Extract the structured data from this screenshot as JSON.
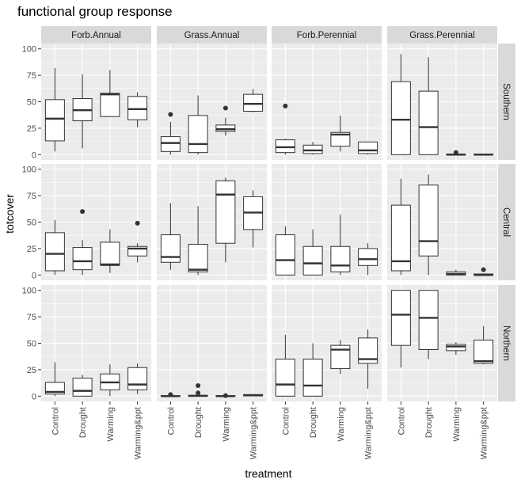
{
  "chart_data": {
    "type": "boxplot",
    "title": "functional group response",
    "xlabel": "treatment",
    "ylabel": "totcover",
    "ylim": [
      -5,
      105
    ],
    "yticks": [
      0,
      25,
      50,
      75,
      100
    ],
    "grid": true,
    "categories": [
      "Control",
      "Drought",
      "Warming",
      "Warming&ppt"
    ],
    "columns": [
      "Forb.Annual",
      "Grass.Annual",
      "Forb.Perennial",
      "Grass.Perennial"
    ],
    "rows": [
      "Southern",
      "Central",
      "Northern"
    ],
    "panels": [
      {
        "row": "Southern",
        "col": "Forb.Annual",
        "boxes": [
          {
            "q1": 13,
            "median": 34,
            "q3": 52,
            "lo": 3,
            "hi": 82,
            "out": []
          },
          {
            "q1": 32,
            "median": 42,
            "q3": 53,
            "lo": 6,
            "hi": 76,
            "out": []
          },
          {
            "q1": 36,
            "median": 57,
            "q3": 58,
            "lo": 36,
            "hi": 80,
            "out": []
          },
          {
            "q1": 33,
            "median": 43,
            "q3": 55,
            "lo": 26,
            "hi": 59,
            "out": []
          }
        ]
      },
      {
        "row": "Southern",
        "col": "Grass.Annual",
        "boxes": [
          {
            "q1": 3,
            "median": 11,
            "q3": 17,
            "lo": 0,
            "hi": 31,
            "out": [
              38
            ]
          },
          {
            "q1": 2,
            "median": 10,
            "q3": 37,
            "lo": 0,
            "hi": 56,
            "out": []
          },
          {
            "q1": 22,
            "median": 24,
            "q3": 28,
            "lo": 18,
            "hi": 35,
            "out": [
              44
            ]
          },
          {
            "q1": 41,
            "median": 48,
            "q3": 57,
            "lo": 40,
            "hi": 62,
            "out": []
          }
        ]
      },
      {
        "row": "Southern",
        "col": "Forb.Perennial",
        "boxes": [
          {
            "q1": 2,
            "median": 7,
            "q3": 14,
            "lo": 0,
            "hi": 15,
            "out": [
              46
            ]
          },
          {
            "q1": 1,
            "median": 4,
            "q3": 9,
            "lo": 0,
            "hi": 12,
            "out": []
          },
          {
            "q1": 8,
            "median": 19,
            "q3": 21,
            "lo": 3,
            "hi": 37,
            "out": []
          },
          {
            "q1": 1,
            "median": 4,
            "q3": 12,
            "lo": 0,
            "hi": 12,
            "out": []
          }
        ]
      },
      {
        "row": "Southern",
        "col": "Grass.Perennial",
        "boxes": [
          {
            "q1": 0,
            "median": 33,
            "q3": 69,
            "lo": 0,
            "hi": 95,
            "out": []
          },
          {
            "q1": 0,
            "median": 26,
            "q3": 60,
            "lo": 0,
            "hi": 92,
            "out": []
          },
          {
            "q1": 0,
            "median": 0,
            "q3": 0.5,
            "lo": 0,
            "hi": 1,
            "out": [
              2
            ]
          },
          {
            "q1": 0,
            "median": 0,
            "q3": 0.5,
            "lo": 0,
            "hi": 0.5,
            "out": []
          }
        ]
      },
      {
        "row": "Central",
        "col": "Forb.Annual",
        "boxes": [
          {
            "q1": 4,
            "median": 20,
            "q3": 40,
            "lo": 0,
            "hi": 52,
            "out": []
          },
          {
            "q1": 5,
            "median": 13,
            "q3": 26,
            "lo": 0,
            "hi": 33,
            "out": [
              60
            ]
          },
          {
            "q1": 9,
            "median": 10,
            "q3": 31,
            "lo": 2,
            "hi": 43,
            "out": []
          },
          {
            "q1": 18,
            "median": 25,
            "q3": 27,
            "lo": 12,
            "hi": 30,
            "out": [
              49
            ]
          }
        ]
      },
      {
        "row": "Central",
        "col": "Grass.Annual",
        "boxes": [
          {
            "q1": 12,
            "median": 17,
            "q3": 38,
            "lo": 5,
            "hi": 68,
            "out": []
          },
          {
            "q1": 3,
            "median": 5,
            "q3": 29,
            "lo": 0,
            "hi": 65,
            "out": []
          },
          {
            "q1": 30,
            "median": 76,
            "q3": 89,
            "lo": 12,
            "hi": 92,
            "out": []
          },
          {
            "q1": 43,
            "median": 59,
            "q3": 74,
            "lo": 26,
            "hi": 80,
            "out": []
          }
        ]
      },
      {
        "row": "Central",
        "col": "Forb.Perennial",
        "boxes": [
          {
            "q1": 0,
            "median": 14,
            "q3": 38,
            "lo": 0,
            "hi": 46,
            "out": []
          },
          {
            "q1": 0,
            "median": 11,
            "q3": 27,
            "lo": 0,
            "hi": 43,
            "out": []
          },
          {
            "q1": 3,
            "median": 9,
            "q3": 27,
            "lo": 0,
            "hi": 57,
            "out": []
          },
          {
            "q1": 9,
            "median": 15,
            "q3": 25,
            "lo": 0,
            "hi": 30,
            "out": []
          }
        ]
      },
      {
        "row": "Central",
        "col": "Grass.Perennial",
        "boxes": [
          {
            "q1": 4,
            "median": 13,
            "q3": 66,
            "lo": 0,
            "hi": 91,
            "out": []
          },
          {
            "q1": 18,
            "median": 32,
            "q3": 85,
            "lo": 0,
            "hi": 95,
            "out": []
          },
          {
            "q1": 0,
            "median": 1,
            "q3": 3,
            "lo": 0,
            "hi": 5,
            "out": []
          },
          {
            "q1": 0,
            "median": 0,
            "q3": 1,
            "lo": 0,
            "hi": 1,
            "out": [
              5
            ]
          }
        ]
      },
      {
        "row": "Northern",
        "col": "Forb.Annual",
        "boxes": [
          {
            "q1": 2,
            "median": 4,
            "q3": 13,
            "lo": 0,
            "hi": 32,
            "out": []
          },
          {
            "q1": 0,
            "median": 5,
            "q3": 17,
            "lo": 0,
            "hi": 20,
            "out": []
          },
          {
            "q1": 6,
            "median": 13,
            "q3": 21,
            "lo": 0,
            "hi": 30,
            "out": []
          },
          {
            "q1": 6,
            "median": 11,
            "q3": 27,
            "lo": 2,
            "hi": 31,
            "out": []
          }
        ]
      },
      {
        "row": "Northern",
        "col": "Grass.Annual",
        "boxes": [
          {
            "q1": 0,
            "median": 0,
            "q3": 0.5,
            "lo": 0,
            "hi": 1,
            "out": [
              1.5
            ]
          },
          {
            "q1": 0,
            "median": 0.3,
            "q3": 0.8,
            "lo": 0,
            "hi": 1,
            "out": [
              3,
              10
            ]
          },
          {
            "q1": 0,
            "median": 0,
            "q3": 0.5,
            "lo": 0,
            "hi": 0.5,
            "out": [
              0.5
            ]
          },
          {
            "q1": 0.2,
            "median": 0.8,
            "q3": 1.5,
            "lo": 0,
            "hi": 2,
            "out": []
          }
        ]
      },
      {
        "row": "Northern",
        "col": "Forb.Perennial",
        "boxes": [
          {
            "q1": 0,
            "median": 11,
            "q3": 35,
            "lo": 0,
            "hi": 58,
            "out": []
          },
          {
            "q1": 0,
            "median": 10,
            "q3": 35,
            "lo": 0,
            "hi": 50,
            "out": []
          },
          {
            "q1": 26,
            "median": 44,
            "q3": 48,
            "lo": 21,
            "hi": 53,
            "out": []
          },
          {
            "q1": 31,
            "median": 35,
            "q3": 55,
            "lo": 7,
            "hi": 63,
            "out": []
          }
        ]
      },
      {
        "row": "Northern",
        "col": "Grass.Perennial",
        "boxes": [
          {
            "q1": 48,
            "median": 77,
            "q3": 100,
            "lo": 27,
            "hi": 100,
            "out": []
          },
          {
            "q1": 44,
            "median": 74,
            "q3": 100,
            "lo": 35,
            "hi": 100,
            "out": []
          },
          {
            "q1": 43,
            "median": 47,
            "q3": 49,
            "lo": 39,
            "hi": 51,
            "out": []
          },
          {
            "q1": 31,
            "median": 33,
            "q3": 53,
            "lo": 30,
            "hi": 66,
            "out": []
          }
        ]
      }
    ]
  },
  "colors": {
    "panel_bg": "#ebebeb",
    "grid": "#ffffff",
    "strip_bg": "#d9d9d9",
    "box_fill": "#ffffff",
    "box_stroke": "#333333",
    "text": "#1a1a1a",
    "tick_text": "#4d4d4d"
  }
}
